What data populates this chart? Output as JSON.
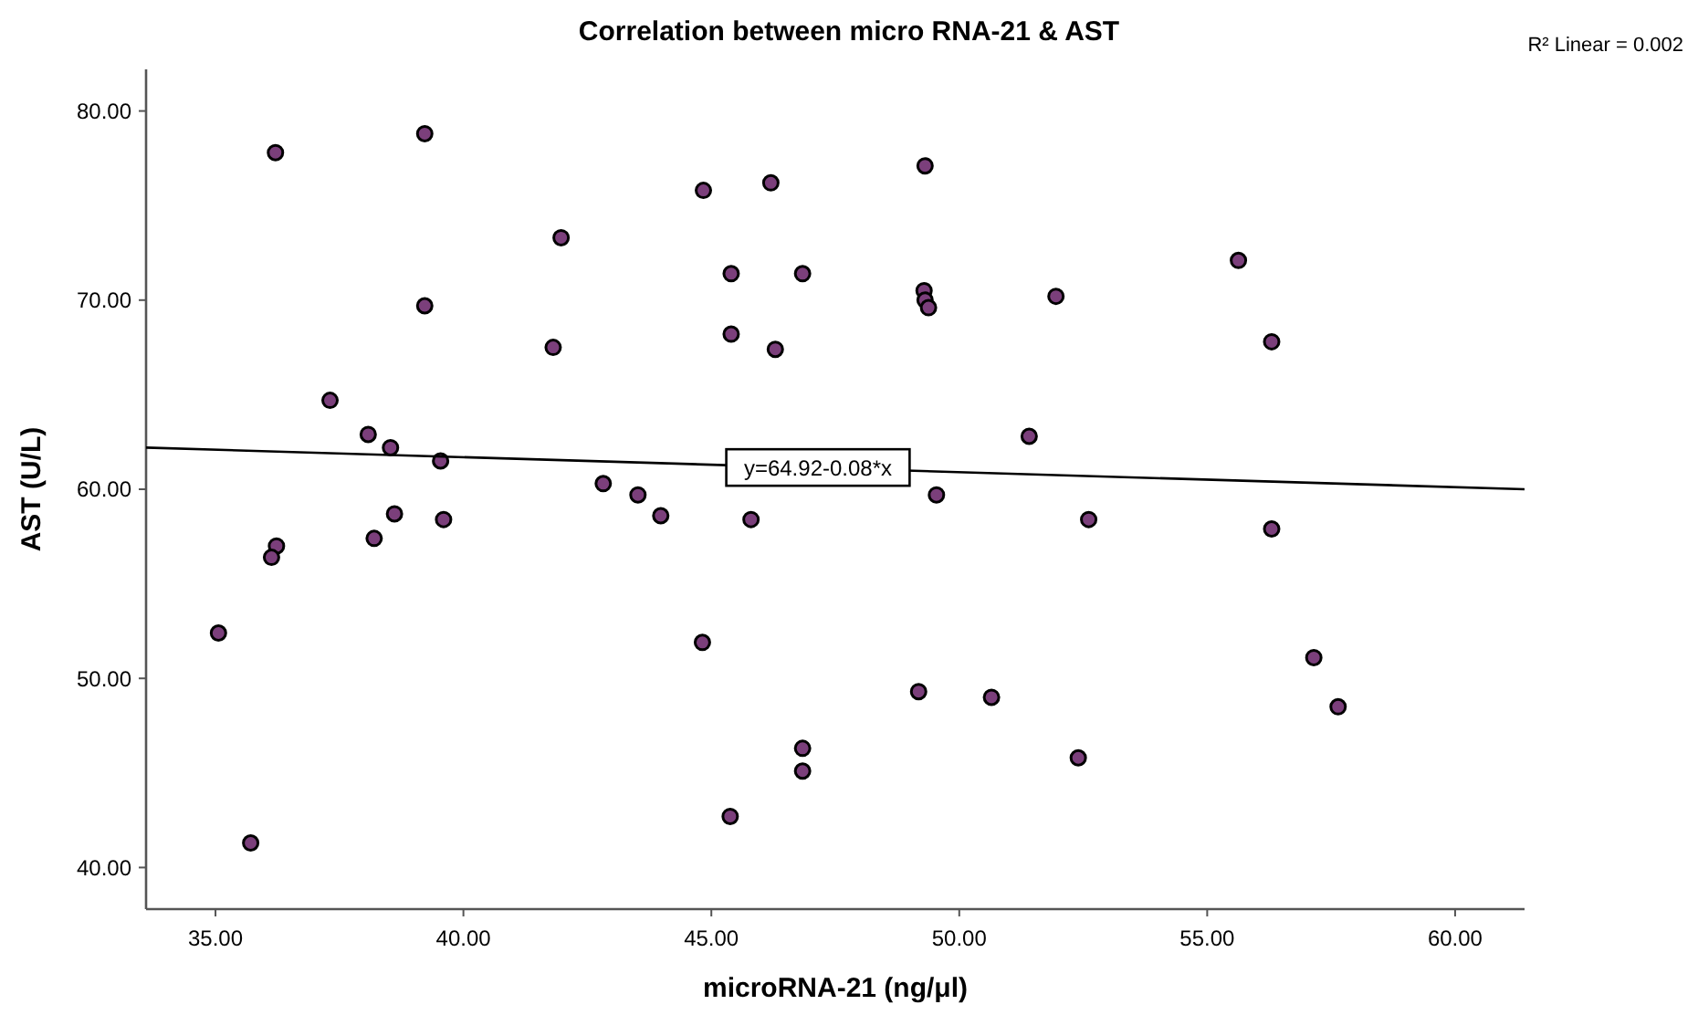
{
  "chart_data": {
    "type": "scatter",
    "title": "Correlation between micro RNA-21 & AST",
    "xlabel": "microRNA-21 (ng/μl)",
    "ylabel": "AST (U/L)",
    "xlim": [
      33.6,
      61.4
    ],
    "ylim": [
      37.8,
      82.2
    ],
    "xticks": [
      {
        "value": 35,
        "label": "35.00"
      },
      {
        "value": 40,
        "label": "40.00"
      },
      {
        "value": 45,
        "label": "45.00"
      },
      {
        "value": 50,
        "label": "50.00"
      },
      {
        "value": 55,
        "label": "55.00"
      },
      {
        "value": 60,
        "label": "60.00"
      }
    ],
    "yticks": [
      {
        "value": 40,
        "label": "40.00"
      },
      {
        "value": 50,
        "label": "50.00"
      },
      {
        "value": 60,
        "label": "60.00"
      },
      {
        "value": 70,
        "label": "70.00"
      },
      {
        "value": 80,
        "label": "80.00"
      }
    ],
    "grid": false,
    "marker": "circle",
    "series": [
      {
        "color": "#7b3f7b",
        "x": [
          36.21,
          39.22,
          44.84,
          46.2,
          41.97,
          45.4,
          46.84,
          39.22,
          41.81,
          45.4,
          46.29,
          37.31,
          38.08,
          38.53,
          39.54,
          49.31,
          49.29,
          49.31,
          49.38,
          51.95,
          55.63,
          56.3,
          51.41,
          49.54,
          42.82,
          43.52,
          43.98,
          45.8,
          38.61,
          39.6,
          38.2,
          36.23,
          36.13,
          35.06,
          44.82,
          46.84,
          46.84,
          45.38,
          35.71,
          52.61,
          56.3,
          57.15,
          57.64,
          49.18,
          50.65,
          52.4
        ],
        "values": [
          77.8,
          78.8,
          75.8,
          76.2,
          73.3,
          71.4,
          71.4,
          69.7,
          67.5,
          68.2,
          67.4,
          64.7,
          62.9,
          62.2,
          61.5,
          77.1,
          70.5,
          70.0,
          69.6,
          70.2,
          72.1,
          67.8,
          62.8,
          59.7,
          60.3,
          59.7,
          58.6,
          58.4,
          58.7,
          58.4,
          57.4,
          57.0,
          56.4,
          52.4,
          51.9,
          46.3,
          45.1,
          42.7,
          41.3,
          58.4,
          57.9,
          51.1,
          48.5,
          49.3,
          49.0,
          45.8
        ]
      },
      {
        "type": "line",
        "color": "#000000",
        "marker": "none",
        "x": [
          33.6,
          61.4
        ],
        "values": [
          62.2,
          60.0
        ]
      }
    ],
    "annotations": [
      {
        "text": "y=64.92-0.08*x",
        "x": 47.15,
        "y": 61.15
      },
      "R² Linear = 0.002"
    ]
  }
}
